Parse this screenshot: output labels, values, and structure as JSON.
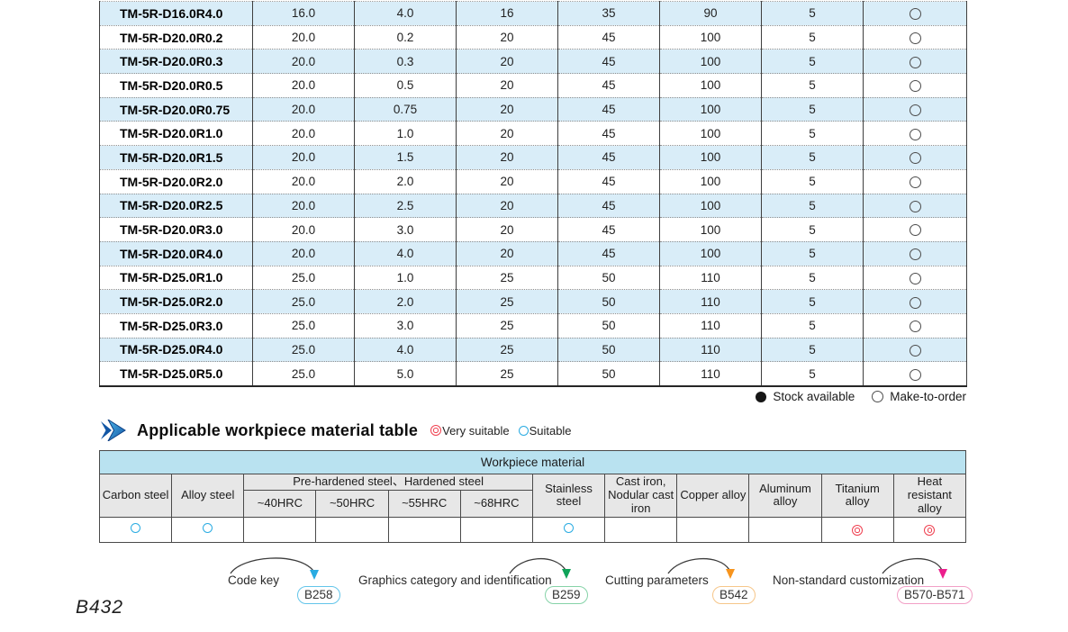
{
  "spec_table": {
    "rows": [
      {
        "model": "TM-5R-D16.0R4.0",
        "values": [
          "16.0",
          "4.0",
          "16",
          "35",
          "90",
          "5"
        ],
        "availability": "make-to-order"
      },
      {
        "model": "TM-5R-D20.0R0.2",
        "values": [
          "20.0",
          "0.2",
          "20",
          "45",
          "100",
          "5"
        ],
        "availability": "make-to-order"
      },
      {
        "model": "TM-5R-D20.0R0.3",
        "values": [
          "20.0",
          "0.3",
          "20",
          "45",
          "100",
          "5"
        ],
        "availability": "make-to-order"
      },
      {
        "model": "TM-5R-D20.0R0.5",
        "values": [
          "20.0",
          "0.5",
          "20",
          "45",
          "100",
          "5"
        ],
        "availability": "make-to-order"
      },
      {
        "model": "TM-5R-D20.0R0.75",
        "values": [
          "20.0",
          "0.75",
          "20",
          "45",
          "100",
          "5"
        ],
        "availability": "make-to-order"
      },
      {
        "model": "TM-5R-D20.0R1.0",
        "values": [
          "20.0",
          "1.0",
          "20",
          "45",
          "100",
          "5"
        ],
        "availability": "make-to-order"
      },
      {
        "model": "TM-5R-D20.0R1.5",
        "values": [
          "20.0",
          "1.5",
          "20",
          "45",
          "100",
          "5"
        ],
        "availability": "make-to-order"
      },
      {
        "model": "TM-5R-D20.0R2.0",
        "values": [
          "20.0",
          "2.0",
          "20",
          "45",
          "100",
          "5"
        ],
        "availability": "make-to-order"
      },
      {
        "model": "TM-5R-D20.0R2.5",
        "values": [
          "20.0",
          "2.5",
          "20",
          "45",
          "100",
          "5"
        ],
        "availability": "make-to-order"
      },
      {
        "model": "TM-5R-D20.0R3.0",
        "values": [
          "20.0",
          "3.0",
          "20",
          "45",
          "100",
          "5"
        ],
        "availability": "make-to-order"
      },
      {
        "model": "TM-5R-D20.0R4.0",
        "values": [
          "20.0",
          "4.0",
          "20",
          "45",
          "100",
          "5"
        ],
        "availability": "make-to-order"
      },
      {
        "model": "TM-5R-D25.0R1.0",
        "values": [
          "25.0",
          "1.0",
          "25",
          "50",
          "110",
          "5"
        ],
        "availability": "make-to-order"
      },
      {
        "model": "TM-5R-D25.0R2.0",
        "values": [
          "25.0",
          "2.0",
          "25",
          "50",
          "110",
          "5"
        ],
        "availability": "make-to-order"
      },
      {
        "model": "TM-5R-D25.0R3.0",
        "values": [
          "25.0",
          "3.0",
          "25",
          "50",
          "110",
          "5"
        ],
        "availability": "make-to-order"
      },
      {
        "model": "TM-5R-D25.0R4.0",
        "values": [
          "25.0",
          "4.0",
          "25",
          "50",
          "110",
          "5"
        ],
        "availability": "make-to-order"
      },
      {
        "model": "TM-5R-D25.0R5.0",
        "values": [
          "25.0",
          "5.0",
          "25",
          "50",
          "110",
          "5"
        ],
        "availability": "make-to-order"
      }
    ]
  },
  "stock_legend": {
    "stock_available": "Stock available",
    "make_to_order": "Make-to-order"
  },
  "section": {
    "title": "Applicable workpiece material table",
    "very_suitable": "Very suitable",
    "suitable": "Suitable"
  },
  "workpiece_table": {
    "title": "Workpiece material",
    "group_header": "Pre-hardened steel、Hardened steel",
    "columns": [
      "Carbon steel",
      "Alloy steel",
      "~40HRC",
      "~50HRC",
      "~55HRC",
      "~68HRC",
      "Stainless steel",
      "Cast iron, Nodular cast iron",
      "Copper alloy",
      "Aluminum alloy",
      "Titanium alloy",
      "Heat resistant alloy"
    ],
    "ratings": [
      "suitable",
      "suitable",
      "",
      "",
      "",
      "",
      "suitable",
      "",
      "",
      "",
      "very_suitable",
      "very_suitable"
    ]
  },
  "footnotes": [
    {
      "label": "Code key",
      "badge": "B258",
      "arrow_color": "#29abe2",
      "badge_border": "#63c5ea"
    },
    {
      "label": "Graphics category and identification",
      "badge": "B259",
      "arrow_color": "#0fa358",
      "badge_border": "#86d3a8"
    },
    {
      "label": "Cutting parameters",
      "badge": "B542",
      "arrow_color": "#f7941d",
      "badge_border": "#f6c689"
    },
    {
      "label": "Non-standard customization",
      "badge": "B570-B571",
      "arrow_color": "#ec1e8c",
      "badge_border": "#f2a0c6"
    }
  ],
  "page_number": "B432",
  "colors": {
    "suitable_blue": "#29abe2",
    "very_suitable_red": "#ef4050",
    "row_alt_blue": "#d9edf8",
    "wp_header_blue": "#b9e2f0",
    "wp_header_gray": "#e7e7e7"
  }
}
